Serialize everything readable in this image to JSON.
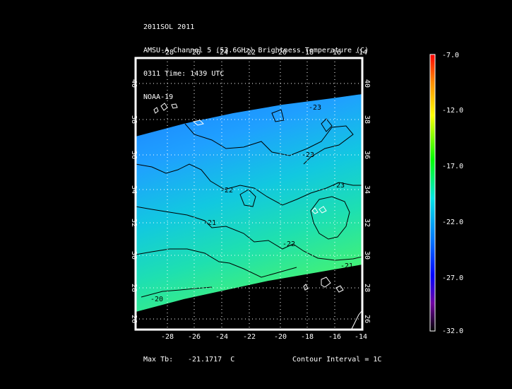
{
  "header": {
    "line1": "2011SOL 2011",
    "line2": "AMSU-A Channel 5 (53.6GHz) Brightness Temperature (C)",
    "line3": "0311 Time: 1439 UTC",
    "line4": "NOAA-19"
  },
  "map": {
    "lon_labels": [
      "-28",
      "-26",
      "-24",
      "-22",
      "-20",
      "-18",
      "-16",
      "-14"
    ],
    "lat_labels": [
      "40",
      "38",
      "36",
      "34",
      "32",
      "30",
      "28",
      "26"
    ],
    "contour_labels": [
      "-23",
      "-23",
      "-23",
      "-22",
      "-22",
      "-21",
      "-21",
      "-20"
    ],
    "colors": {
      "background": "#000000",
      "frame": "#ffffff",
      "grid": "#ffffff",
      "contour": "#000000",
      "coast": "#ffffff"
    }
  },
  "colorbar": {
    "labels": [
      "-7.0",
      "-12.0",
      "-17.0",
      "-22.0",
      "-27.0",
      "-32.0"
    ],
    "stops": [
      "#ff0000",
      "#ff8c00",
      "#ffff00",
      "#00ff00",
      "#00e5e5",
      "#0070ff",
      "#0000ff",
      "#7000a0",
      "#000000"
    ]
  },
  "footer": {
    "max_tb_label": "Max Tb:",
    "max_tb_value": "-21.1717  C",
    "contour_interval": "Contour Interval = 1C"
  }
}
